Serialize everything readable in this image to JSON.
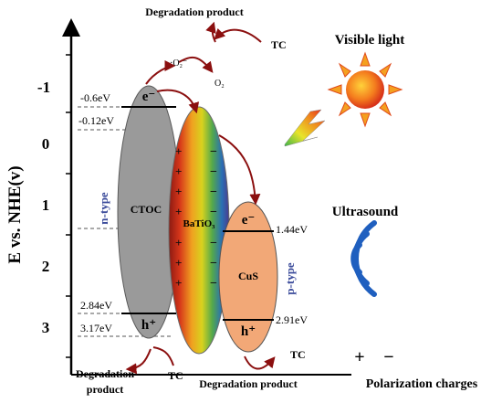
{
  "y_axis": {
    "label": "E vs. NHE(v)",
    "ticks": [
      "-1",
      "0",
      "1",
      "2",
      "3"
    ]
  },
  "labels": {
    "top_product": "Degradation product",
    "top_tc": "TC",
    "radical": "·O₂⁻",
    "o2": "O₂",
    "visible_light": "Visible light",
    "ultrasound": "Ultrasound",
    "ctoc": "CTOC",
    "n_type": "n-type",
    "batio3": "BaTiO₃",
    "cus": "CuS",
    "p_type": "p-type",
    "e_minus": "e⁻",
    "h_plus": "h⁺",
    "bottom_left_product_line1": "Degradation",
    "bottom_left_product_line2": "product",
    "bottom_left_tc": "TC",
    "bottom_mid_product": "Degradation product",
    "bottom_mid_tc": "TC",
    "polarization_plus": "+",
    "polarization_minus": "−",
    "polarization_charges": "Polarization charges"
  },
  "energy_levels": {
    "ctoc_cb": "-0.6eV",
    "batio3_cb": "-0.12eV",
    "ctoc_vb": "2.84eV",
    "batio3_vb": "3.17eV",
    "cus_cb": "1.44eV",
    "cus_vb": "2.91eV"
  },
  "batio3_charges": {
    "plus": [
      "+",
      "+",
      "+",
      "+",
      "+",
      "+",
      "+",
      "+",
      "+"
    ],
    "minus": [
      "−",
      "−",
      "−",
      "−",
      "−",
      "−",
      "−",
      "−",
      "−"
    ]
  },
  "colors": {
    "ctoc_fill": "#9a9a9a",
    "cus_fill": "#f2a877",
    "arrow": "#8b0f0f",
    "ptype_text": "#3a4a9a",
    "ntype_text": "#3a4a9a",
    "wave": "#1f5fbf"
  }
}
